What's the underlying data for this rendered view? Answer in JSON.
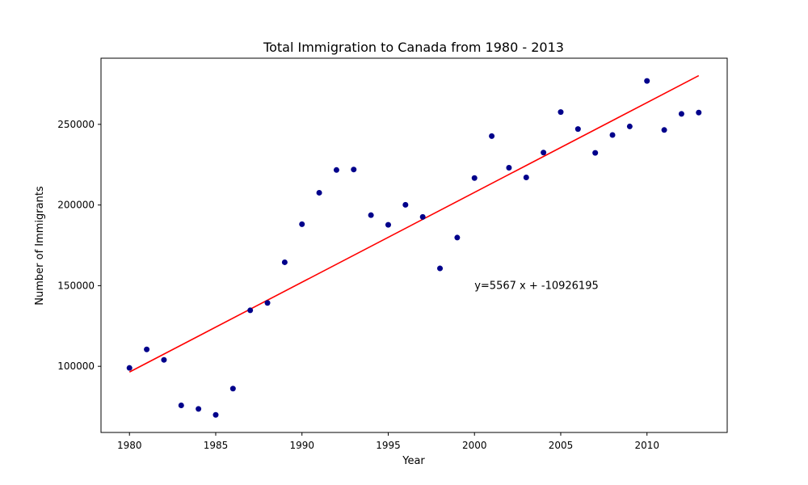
{
  "chart_data": {
    "type": "scatter",
    "title": "Total Immigration to Canada from 1980 - 2013",
    "xlabel": "Year",
    "ylabel": "Number of Immigrants",
    "xlim": [
      1978.35,
      2014.65
    ],
    "ylim": [
      59000,
      291000
    ],
    "x_ticks": [
      1980,
      1985,
      1990,
      1995,
      2000,
      2005,
      2010
    ],
    "y_ticks": [
      100000,
      150000,
      200000,
      250000
    ],
    "grid": false,
    "marker_color": "#00008b",
    "fit_line_color": "#ff0000",
    "points": [
      {
        "x": 1980,
        "y": 99000
      },
      {
        "x": 1981,
        "y": 110500
      },
      {
        "x": 1982,
        "y": 104000
      },
      {
        "x": 1983,
        "y": 75800
      },
      {
        "x": 1984,
        "y": 73600
      },
      {
        "x": 1985,
        "y": 69900
      },
      {
        "x": 1986,
        "y": 86200
      },
      {
        "x": 1987,
        "y": 134700
      },
      {
        "x": 1988,
        "y": 139300
      },
      {
        "x": 1989,
        "y": 164500
      },
      {
        "x": 1990,
        "y": 188100
      },
      {
        "x": 1991,
        "y": 207600
      },
      {
        "x": 1992,
        "y": 221700
      },
      {
        "x": 1993,
        "y": 222000
      },
      {
        "x": 1994,
        "y": 193700
      },
      {
        "x": 1995,
        "y": 187700
      },
      {
        "x": 1996,
        "y": 200100
      },
      {
        "x": 1997,
        "y": 192600
      },
      {
        "x": 1998,
        "y": 160700
      },
      {
        "x": 1999,
        "y": 179800
      },
      {
        "x": 2000,
        "y": 216700
      },
      {
        "x": 2001,
        "y": 242700
      },
      {
        "x": 2002,
        "y": 223100
      },
      {
        "x": 2003,
        "y": 217100
      },
      {
        "x": 2004,
        "y": 232500
      },
      {
        "x": 2005,
        "y": 257600
      },
      {
        "x": 2006,
        "y": 247100
      },
      {
        "x": 2007,
        "y": 232300
      },
      {
        "x": 2008,
        "y": 243400
      },
      {
        "x": 2009,
        "y": 248700
      },
      {
        "x": 2010,
        "y": 276900
      },
      {
        "x": 2011,
        "y": 246500
      },
      {
        "x": 2012,
        "y": 256500
      },
      {
        "x": 2013,
        "y": 257300
      }
    ],
    "fit_line": {
      "slope": 5567,
      "intercept": -10926195,
      "x_range": [
        1980,
        2013
      ]
    },
    "annotation": {
      "text": "y=5567 x + -10926195",
      "x": 2000,
      "y": 150000
    }
  }
}
